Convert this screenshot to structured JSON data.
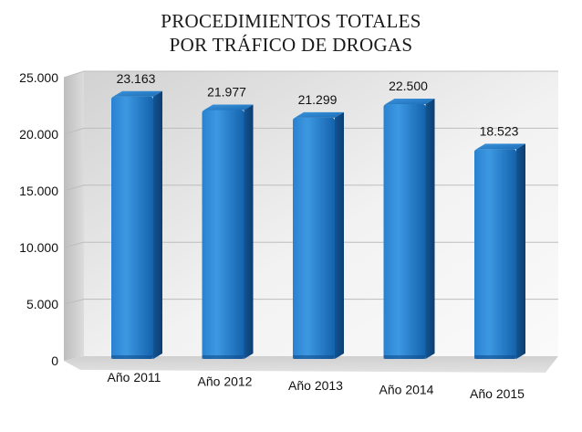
{
  "chart_data": {
    "type": "bar",
    "title_lines": [
      "PROCEDIMIENTOS TOTALES",
      "POR TRÁFICO DE DROGAS"
    ],
    "categories": [
      "Año 2011",
      "Año 2012",
      "Año 2013",
      "Año 2014",
      "Año 2015"
    ],
    "values": [
      23163,
      21977,
      21299,
      22500,
      18523
    ],
    "data_labels": [
      "23.163",
      "21.977",
      "21.299",
      "22.500",
      "18.523"
    ],
    "ylim": [
      0,
      25000
    ],
    "yticks": [
      0,
      5000,
      10000,
      15000,
      20000,
      25000
    ],
    "ytick_labels": [
      "0",
      "5.000",
      "10.000",
      "15.000",
      "20.000",
      "25.000"
    ],
    "xlabel": "",
    "ylabel": "",
    "style": "3d-column",
    "grid": true,
    "legend": "none",
    "colors": {
      "bar": "#1f74c0",
      "bar_light": "#3d94de",
      "bar_top": "#2d8ad6",
      "bar_dark": "#0f4e8f",
      "wall": "#e4e4e4",
      "floor": "#d4d4d4"
    }
  }
}
